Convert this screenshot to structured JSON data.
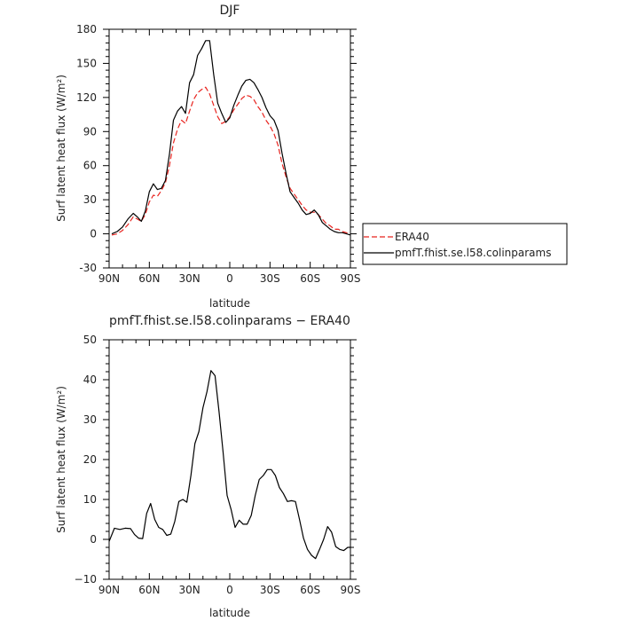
{
  "chart_data": [
    {
      "type": "line",
      "title": "DJF",
      "xlabel": "latitude",
      "ylabel": "Surf latent heat flux (W/m²)",
      "xlim": [
        90,
        -90
      ],
      "ylim": [
        -30,
        180
      ],
      "xticks": [
        90,
        60,
        30,
        0,
        -30,
        -60,
        -90
      ],
      "xtick_labels": [
        "90N",
        "60N",
        "30N",
        "0",
        "30S",
        "60S",
        "90S"
      ],
      "yticks": [
        -30,
        0,
        30,
        60,
        90,
        120,
        150,
        180
      ],
      "ytick_labels": [
        "-30",
        "0",
        "30",
        "60",
        "90",
        "120",
        "150",
        "180"
      ],
      "grid": false,
      "legend": "right",
      "series": [
        {
          "name": "ERA40",
          "color": "#e8241f",
          "dash": "dashed",
          "x": [
            88,
            84,
            80,
            76,
            72,
            69,
            66,
            63,
            60,
            57,
            54,
            51,
            48,
            45,
            42,
            39,
            36,
            33,
            30,
            27,
            24,
            21,
            18,
            15,
            12,
            9,
            6,
            3,
            0,
            -3,
            -6,
            -9,
            -12,
            -15,
            -18,
            -21,
            -24,
            -27,
            -30,
            -33,
            -36,
            -39,
            -42,
            -45,
            -48,
            -51,
            -54,
            -57,
            -60,
            -63,
            -66,
            -69,
            -72,
            -75,
            -78,
            -81,
            -84,
            -87,
            -90
          ],
          "values": [
            -1,
            0,
            3,
            8,
            15,
            13,
            11,
            17,
            28,
            34,
            33,
            38,
            45,
            60,
            80,
            92,
            100,
            97,
            108,
            118,
            124,
            127,
            129,
            123,
            113,
            103,
            97,
            99,
            103,
            109,
            114,
            119,
            122,
            121,
            118,
            112,
            107,
            100,
            95,
            88,
            78,
            62,
            50,
            40,
            35,
            30,
            25,
            21,
            19,
            19,
            17,
            13,
            9,
            7,
            4,
            4,
            2,
            1,
            0
          ]
        },
        {
          "name": "pmfT.fhist.se.l58.colinparams",
          "color": "#000000",
          "dash": "solid",
          "x": [
            88,
            84,
            80,
            76,
            72,
            69,
            66,
            63,
            60,
            57,
            54,
            51,
            48,
            45,
            42,
            39,
            36,
            33,
            30,
            27,
            24,
            21,
            18,
            15,
            12,
            9,
            6,
            3,
            0,
            -3,
            -6,
            -9,
            -12,
            -15,
            -18,
            -21,
            -24,
            -27,
            -30,
            -33,
            -36,
            -39,
            -42,
            -45,
            -48,
            -51,
            -54,
            -57,
            -60,
            -63,
            -66,
            -69,
            -72,
            -75,
            -78,
            -81,
            -84,
            -87,
            -90
          ],
          "values": [
            0,
            2,
            6,
            13,
            18,
            15,
            11,
            20,
            37,
            44,
            39,
            40,
            47,
            70,
            100,
            108,
            112,
            106,
            133,
            140,
            157,
            163,
            170,
            170,
            140,
            115,
            106,
            98,
            102,
            113,
            122,
            130,
            135,
            136,
            133,
            127,
            120,
            111,
            104,
            100,
            91,
            71,
            53,
            37,
            32,
            27,
            21,
            17,
            18,
            21,
            17,
            10,
            7,
            4,
            2,
            1,
            1,
            0,
            -1
          ]
        }
      ]
    },
    {
      "type": "line",
      "title": "pmfT.fhist.se.l58.colinparams − ERA40",
      "xlabel": "latitude",
      "ylabel": "Surf latent heat flux (W/m²)",
      "xlim": [
        90,
        -90
      ],
      "ylim": [
        -10,
        50
      ],
      "xticks": [
        90,
        60,
        30,
        0,
        -30,
        -60,
        -90
      ],
      "xtick_labels": [
        "90N",
        "60N",
        "30N",
        "0",
        "30S",
        "60S",
        "90S"
      ],
      "yticks": [
        -10,
        0,
        10,
        20,
        30,
        40,
        50
      ],
      "ytick_labels": [
        "−10",
        "0",
        "10",
        "20",
        "30",
        "40",
        "50"
      ],
      "grid": false,
      "series": [
        {
          "color": "#000000",
          "dash": "solid",
          "x": [
            90,
            86,
            82,
            78,
            74,
            71,
            68,
            65,
            62,
            59,
            56,
            53,
            50,
            47,
            44,
            41,
            38,
            35,
            32,
            29,
            26,
            23,
            20,
            17,
            14,
            11,
            8,
            5,
            2,
            -1,
            -4,
            -7,
            -10,
            -13,
            -16,
            -19,
            -22,
            -25,
            -28,
            -31,
            -34,
            -37,
            -40,
            -43,
            -46,
            -49,
            -52,
            -55,
            -58,
            -61,
            -64,
            -67,
            -70,
            -73,
            -76,
            -79,
            -82,
            -85,
            -88,
            -90
          ],
          "values": [
            -0.5,
            2.8,
            2.5,
            2.8,
            2.7,
            1.2,
            0.3,
            0.2,
            6.5,
            9,
            5,
            3,
            2.5,
            1,
            1.3,
            4.5,
            9.5,
            10,
            9.3,
            16,
            24,
            27,
            33,
            37,
            42.3,
            41,
            32,
            22,
            11,
            7.5,
            3,
            4.8,
            3.8,
            3.8,
            6,
            11,
            15,
            16,
            17.5,
            17.5,
            16,
            13,
            11.5,
            9.5,
            9.7,
            9.5,
            5,
            0.3,
            -2.5,
            -4,
            -4.8,
            -2.5,
            0,
            3.2,
            1.8,
            -1.8,
            -2.5,
            -2.8,
            -2,
            -2
          ]
        }
      ]
    }
  ]
}
